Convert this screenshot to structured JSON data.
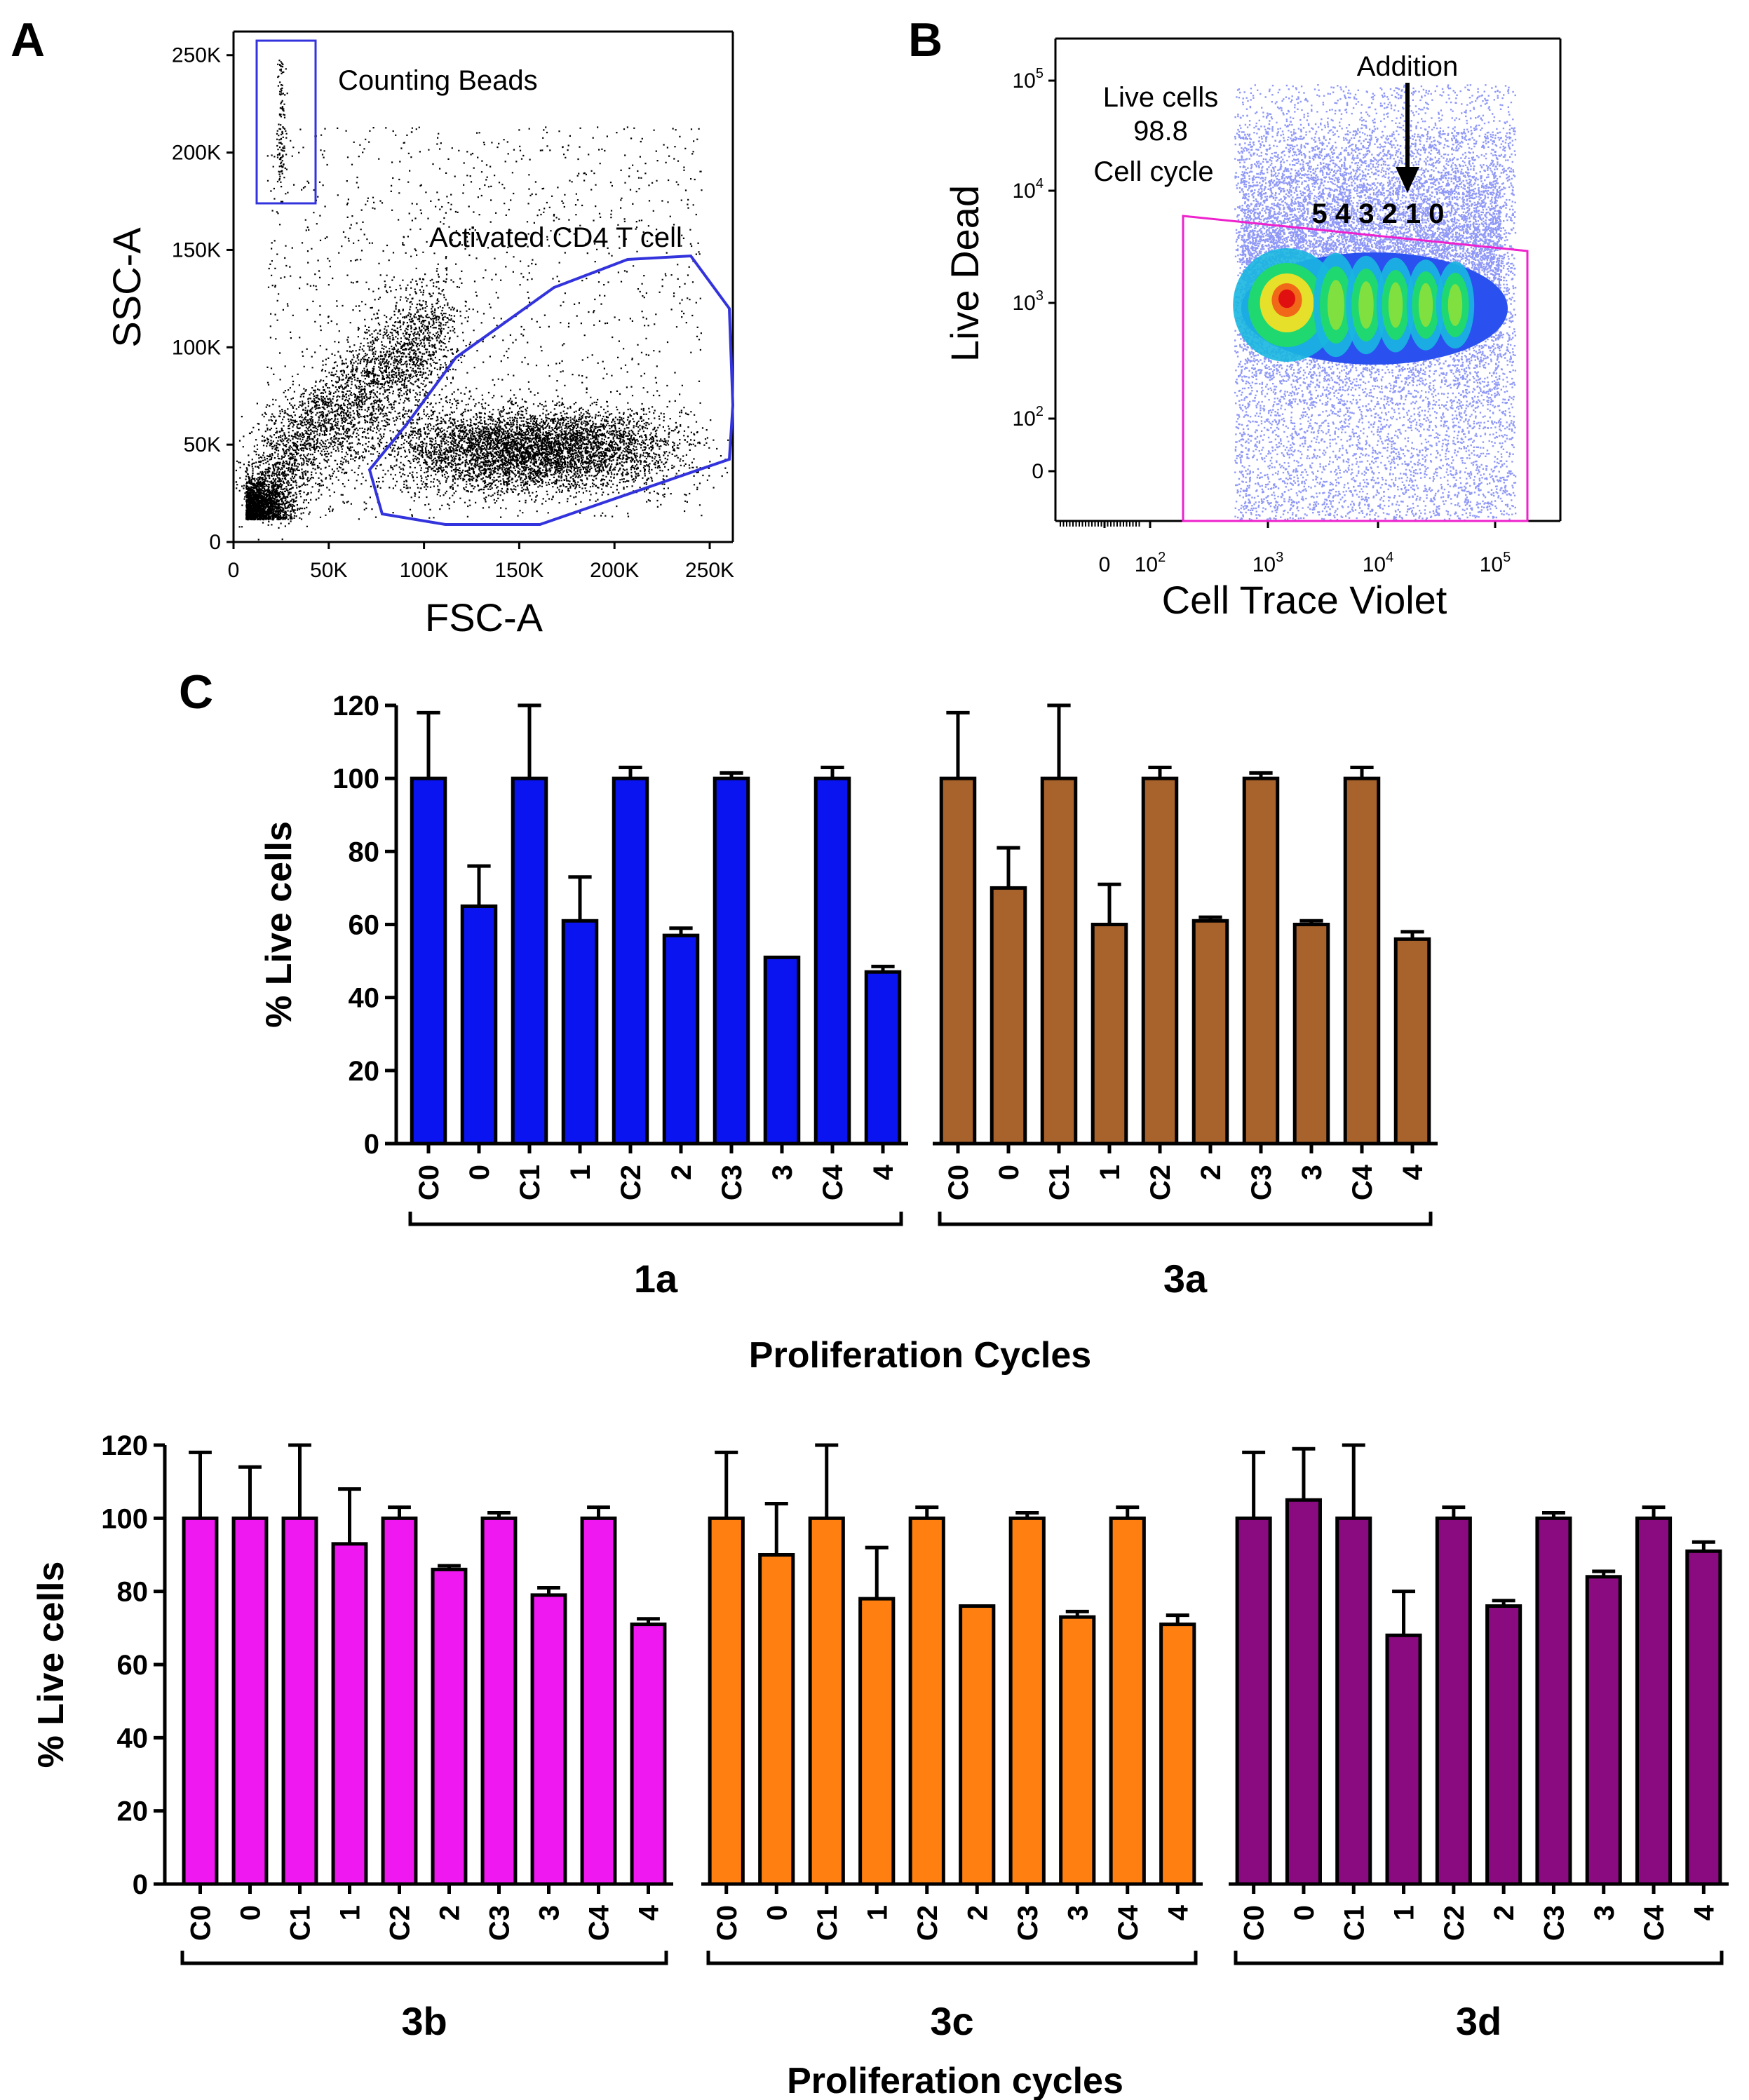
{
  "panels": {
    "a": {
      "letter": "A",
      "x_axis_title": "FSC-A",
      "y_axis_title": "SSC-A",
      "x_ticks": [
        "0",
        "50K",
        "100K",
        "150K",
        "200K",
        "250K"
      ],
      "y_ticks": [
        "0",
        "50K",
        "100K",
        "150K",
        "200K",
        "250K"
      ],
      "gate_beads_label": "Counting Beads",
      "gate_cells_label": "Activated CD4 T cell",
      "gate_color": "#3333dd"
    },
    "b": {
      "letter": "B",
      "x_axis_title": "Cell Trace Violet",
      "y_axis_title": "Live Dead",
      "x_ticks": [
        {
          "base": "0",
          "exp": ""
        },
        {
          "base": "10",
          "exp": "2"
        },
        {
          "base": "10",
          "exp": "3"
        },
        {
          "base": "10",
          "exp": "4"
        },
        {
          "base": "10",
          "exp": "5"
        }
      ],
      "y_ticks": [
        {
          "base": "0",
          "exp": ""
        },
        {
          "base": "10",
          "exp": "2"
        },
        {
          "base": "10",
          "exp": "3"
        },
        {
          "base": "10",
          "exp": "4"
        },
        {
          "base": "10",
          "exp": "5"
        }
      ],
      "gate_label_line1": "Live cells",
      "gate_value": "98.8",
      "cycle_label": "Cell cycle",
      "addition_label": "Addition",
      "cycle_numbers": "5 4 3 2 1 0",
      "gate_color": "#ee22cc"
    },
    "c": {
      "letter": "C"
    }
  },
  "chart_data": [
    {
      "type": "bar",
      "title": "",
      "xlabel": "Proliferation Cycles",
      "ylabel": "% Live cells",
      "ylim": [
        0,
        120
      ],
      "yticks": [
        0,
        20,
        40,
        60,
        80,
        100,
        120
      ],
      "categories": [
        "C0",
        "0",
        "C1",
        "1",
        "C2",
        "2",
        "C3",
        "3",
        "C4",
        "4"
      ],
      "series": [
        {
          "name": "1a",
          "color": "#0a14f0",
          "values": [
            100,
            65,
            100,
            61,
            100,
            57,
            100,
            51,
            100,
            47
          ],
          "errors": [
            18,
            11,
            20,
            12,
            3,
            2,
            1.5,
            0,
            3,
            1.5
          ]
        },
        {
          "name": "3a",
          "color": "#a8622c",
          "values": [
            100,
            70,
            100,
            60,
            100,
            61,
            100,
            60,
            100,
            56
          ],
          "errors": [
            18,
            11,
            20,
            11,
            3,
            1,
            1.5,
            1,
            3,
            2
          ]
        }
      ]
    },
    {
      "type": "bar",
      "title": "",
      "xlabel": "Proliferation cycles",
      "ylabel": "% Live cells",
      "ylim": [
        0,
        120
      ],
      "yticks": [
        0,
        20,
        40,
        60,
        80,
        100,
        120
      ],
      "categories": [
        "C0",
        "0",
        "C1",
        "1",
        "C2",
        "2",
        "C3",
        "3",
        "C4",
        "4"
      ],
      "series": [
        {
          "name": "3b",
          "color": "#f018f0",
          "values": [
            100,
            100,
            100,
            93,
            100,
            86,
            100,
            79,
            100,
            71
          ],
          "errors": [
            18,
            14,
            20,
            15,
            3,
            1,
            1.5,
            2,
            3,
            1.5
          ]
        },
        {
          "name": "3c",
          "color": "#ff8010",
          "values": [
            100,
            90,
            100,
            78,
            100,
            76,
            100,
            73,
            100,
            71
          ],
          "errors": [
            18,
            14,
            20,
            14,
            3,
            0,
            1.5,
            1.5,
            3,
            2.5
          ]
        },
        {
          "name": "3d",
          "color": "#8a0a80",
          "values": [
            100,
            105,
            100,
            68,
            100,
            76,
            100,
            84,
            100,
            91
          ],
          "errors": [
            18,
            14,
            20,
            12,
            3,
            1.5,
            1.5,
            1.5,
            3,
            2.5
          ]
        }
      ]
    }
  ]
}
